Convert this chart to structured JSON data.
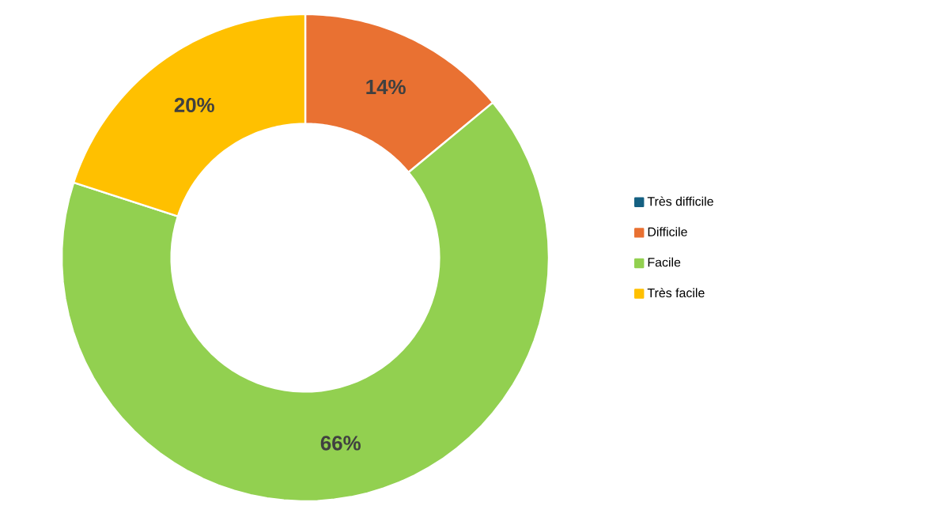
{
  "chart_data": {
    "type": "donut",
    "categories": [
      "Très difficile",
      "Difficile",
      "Facile",
      "Très facile"
    ],
    "values": [
      0,
      14,
      66,
      20
    ],
    "colors": [
      "#156082",
      "#e97132",
      "#92d050",
      "#ffc000"
    ],
    "value_labels": [
      null,
      "14%",
      "66%",
      "20%"
    ],
    "legend": "right"
  }
}
